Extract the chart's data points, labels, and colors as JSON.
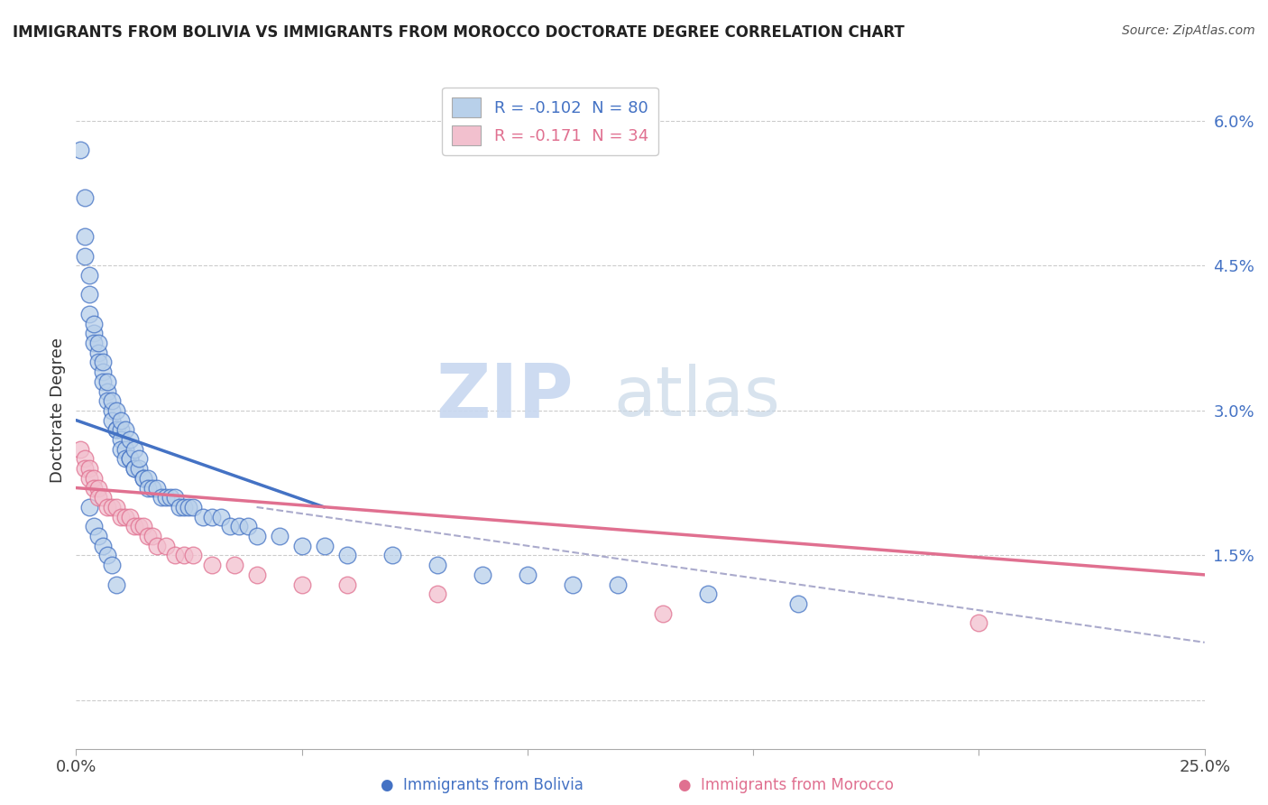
{
  "title": "IMMIGRANTS FROM BOLIVIA VS IMMIGRANTS FROM MOROCCO DOCTORATE DEGREE CORRELATION CHART",
  "source": "Source: ZipAtlas.com",
  "ylabel": "Doctorate Degree",
  "xlim": [
    0.0,
    0.25
  ],
  "ylim": [
    -0.005,
    0.065
  ],
  "xticks": [
    0.0,
    0.05,
    0.1,
    0.15,
    0.2,
    0.25
  ],
  "xticklabels": [
    "0.0%",
    "",
    "",
    "",
    "",
    "25.0%"
  ],
  "yticks": [
    0.0,
    0.015,
    0.03,
    0.045,
    0.06
  ],
  "yticklabels": [
    "",
    "1.5%",
    "3.0%",
    "4.5%",
    "6.0%"
  ],
  "legend_bolivia": "R = -0.102  N = 80",
  "legend_morocco": "R = -0.171  N = 34",
  "color_bolivia": "#b8d0ea",
  "color_morocco": "#f2c0ce",
  "color_line_bolivia": "#4472c4",
  "color_line_morocco": "#e07090",
  "color_trend_dashed": "#aaaacc",
  "bolivia_x": [
    0.001,
    0.002,
    0.002,
    0.003,
    0.003,
    0.004,
    0.004,
    0.005,
    0.005,
    0.006,
    0.006,
    0.007,
    0.007,
    0.008,
    0.008,
    0.009,
    0.009,
    0.01,
    0.01,
    0.01,
    0.011,
    0.011,
    0.012,
    0.012,
    0.013,
    0.013,
    0.014,
    0.015,
    0.015,
    0.016,
    0.016,
    0.017,
    0.018,
    0.019,
    0.02,
    0.021,
    0.022,
    0.023,
    0.024,
    0.025,
    0.026,
    0.028,
    0.03,
    0.032,
    0.034,
    0.036,
    0.038,
    0.04,
    0.045,
    0.05,
    0.055,
    0.06,
    0.07,
    0.08,
    0.09,
    0.1,
    0.11,
    0.12,
    0.14,
    0.16,
    0.002,
    0.003,
    0.004,
    0.005,
    0.006,
    0.007,
    0.008,
    0.009,
    0.01,
    0.011,
    0.012,
    0.013,
    0.014,
    0.003,
    0.004,
    0.005,
    0.006,
    0.007,
    0.008,
    0.009
  ],
  "bolivia_y": [
    0.057,
    0.052,
    0.048,
    0.044,
    0.04,
    0.038,
    0.037,
    0.036,
    0.035,
    0.034,
    0.033,
    0.032,
    0.031,
    0.03,
    0.029,
    0.028,
    0.028,
    0.028,
    0.027,
    0.026,
    0.026,
    0.025,
    0.025,
    0.025,
    0.024,
    0.024,
    0.024,
    0.023,
    0.023,
    0.023,
    0.022,
    0.022,
    0.022,
    0.021,
    0.021,
    0.021,
    0.021,
    0.02,
    0.02,
    0.02,
    0.02,
    0.019,
    0.019,
    0.019,
    0.018,
    0.018,
    0.018,
    0.017,
    0.017,
    0.016,
    0.016,
    0.015,
    0.015,
    0.014,
    0.013,
    0.013,
    0.012,
    0.012,
    0.011,
    0.01,
    0.046,
    0.042,
    0.039,
    0.037,
    0.035,
    0.033,
    0.031,
    0.03,
    0.029,
    0.028,
    0.027,
    0.026,
    0.025,
    0.02,
    0.018,
    0.017,
    0.016,
    0.015,
    0.014,
    0.012
  ],
  "morocco_x": [
    0.001,
    0.002,
    0.002,
    0.003,
    0.003,
    0.004,
    0.004,
    0.005,
    0.005,
    0.006,
    0.007,
    0.008,
    0.009,
    0.01,
    0.011,
    0.012,
    0.013,
    0.014,
    0.015,
    0.016,
    0.017,
    0.018,
    0.02,
    0.022,
    0.024,
    0.026,
    0.03,
    0.035,
    0.04,
    0.05,
    0.06,
    0.08,
    0.13,
    0.2
  ],
  "morocco_y": [
    0.026,
    0.025,
    0.024,
    0.024,
    0.023,
    0.023,
    0.022,
    0.022,
    0.021,
    0.021,
    0.02,
    0.02,
    0.02,
    0.019,
    0.019,
    0.019,
    0.018,
    0.018,
    0.018,
    0.017,
    0.017,
    0.016,
    0.016,
    0.015,
    0.015,
    0.015,
    0.014,
    0.014,
    0.013,
    0.012,
    0.012,
    0.011,
    0.009,
    0.008
  ],
  "bolivia_trend_x0": 0.0,
  "bolivia_trend_x1": 0.055,
  "bolivia_trend_y0": 0.029,
  "bolivia_trend_y1": 0.02,
  "morocco_trend_x0": 0.0,
  "morocco_trend_x1": 0.25,
  "morocco_trend_y0": 0.022,
  "morocco_trend_y1": 0.013,
  "dashed_trend_x0": 0.04,
  "dashed_trend_x1": 0.25,
  "dashed_trend_y0": 0.02,
  "dashed_trend_y1": 0.006
}
